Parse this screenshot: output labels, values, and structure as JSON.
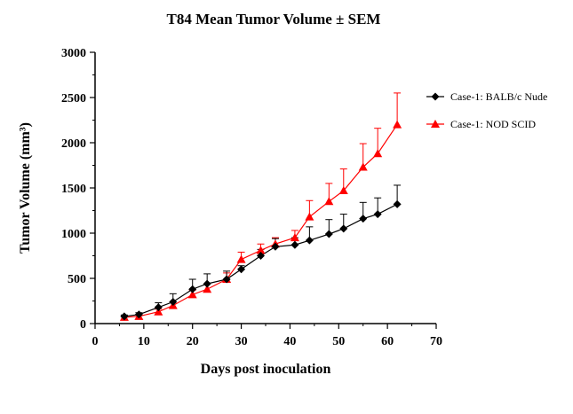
{
  "chart_data": {
    "type": "line",
    "title": "T84 Mean Tumor Volume ± SEM",
    "xlabel": "Days post inoculation",
    "ylabel": "Tumor Volume (mm³)",
    "xlim": [
      0,
      70
    ],
    "ylim": [
      0,
      3000
    ],
    "x_ticks": [
      "0",
      "10",
      "20",
      "30",
      "40",
      "50",
      "60",
      "70"
    ],
    "y_ticks": [
      "0",
      "500",
      "1000",
      "1500",
      "2000",
      "2500",
      "3000"
    ],
    "grid": false,
    "legend_position": "right",
    "series": [
      {
        "name": "Case-1: BALB/c Nude",
        "color": "#000000",
        "marker": "diamond",
        "x": [
          6,
          9,
          13,
          16,
          20,
          23,
          27,
          30,
          34,
          37,
          41,
          44,
          48,
          51,
          55,
          58,
          62
        ],
        "y": [
          80,
          100,
          180,
          240,
          380,
          440,
          490,
          600,
          750,
          850,
          870,
          920,
          990,
          1050,
          1160,
          1210,
          1320
        ],
        "err": [
          15,
          20,
          50,
          90,
          110,
          110,
          90,
          40,
          70,
          90,
          80,
          150,
          160,
          160,
          180,
          180,
          210
        ]
      },
      {
        "name": "Case-1: NOD SCID",
        "color": "#ff0000",
        "marker": "triangle",
        "x": [
          6,
          9,
          13,
          16,
          20,
          23,
          27,
          30,
          34,
          37,
          41,
          44,
          48,
          51,
          55,
          58,
          62
        ],
        "y": [
          70,
          80,
          130,
          200,
          320,
          380,
          490,
          710,
          810,
          880,
          950,
          1180,
          1350,
          1470,
          1730,
          1880,
          2200
        ],
        "err": [
          10,
          15,
          30,
          40,
          50,
          60,
          70,
          80,
          70,
          70,
          80,
          180,
          200,
          240,
          260,
          280,
          350
        ]
      }
    ]
  }
}
